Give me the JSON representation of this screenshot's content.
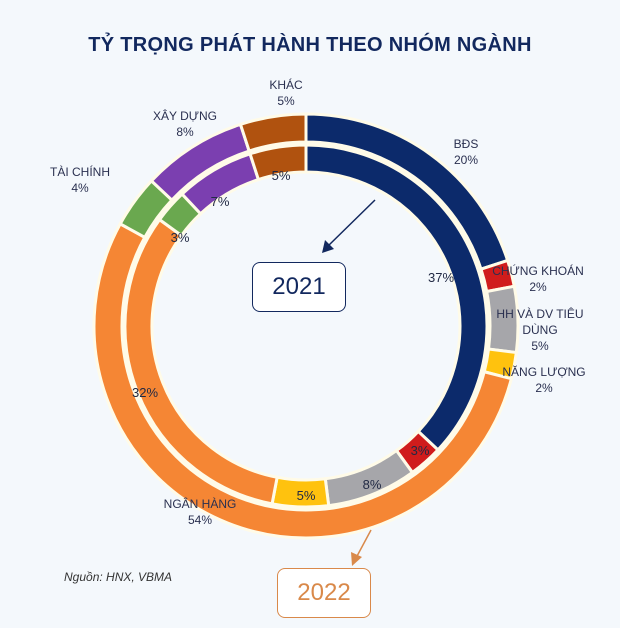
{
  "chart_data": {
    "type": "pie",
    "subtype": "double-donut",
    "title": "TỶ TRỌNG PHÁT HÀNH THEO NHÓM NGÀNH",
    "categories": [
      "BĐS",
      "CHỨNG KHOÁN",
      "HH VÀ DV TIÊU DÙNG",
      "NĂNG LƯỢNG",
      "NGÂN HÀNG",
      "TÀI CHÍNH",
      "XÂY DỰNG",
      "KHÁC"
    ],
    "colors": [
      "#0c2a6b",
      "#d01c1c",
      "#a6a6aa",
      "#ffc20e",
      "#f58634",
      "#6aa84f",
      "#7b3fb0",
      "#b0520f"
    ],
    "series": [
      {
        "name": "2021",
        "ring": "inner",
        "values": [
          37,
          3,
          8,
          5,
          32,
          3,
          7,
          5
        ],
        "labels": [
          "37%",
          "3%",
          "8%",
          "5%",
          "32%",
          "3%",
          "7%",
          "5%"
        ]
      },
      {
        "name": "2022",
        "ring": "outer",
        "values": [
          20,
          2,
          5,
          2,
          54,
          4,
          8,
          5
        ],
        "labels": [
          "20%",
          "2%",
          "5%",
          "2%",
          "54%",
          "4%",
          "8%",
          "5%"
        ]
      }
    ],
    "source": "Nguồn: HNX, VBMA"
  }
}
